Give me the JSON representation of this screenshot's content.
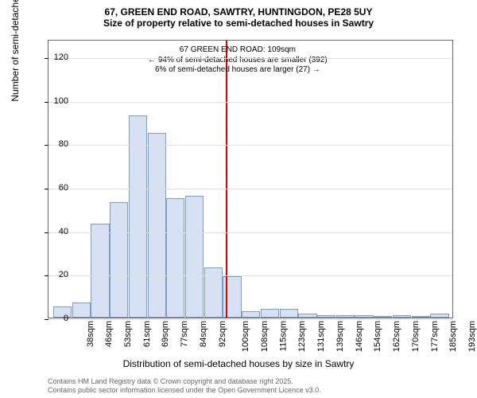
{
  "title": {
    "line1": "67, GREEN END ROAD, SAWTRY, HUNTINGDON, PE28 5UY",
    "line2": "Size of property relative to semi-detached houses in Sawtry"
  },
  "chart": {
    "type": "histogram",
    "bar_fill": "#d6e2f3",
    "bar_border": "#7a9cc6",
    "grid_color": "#e0e0e0",
    "background_color": "#ffffff",
    "ref_line_color": "#d40000",
    "ref_line_x_index": 9,
    "ylim": [
      0,
      128
    ],
    "yticks": [
      0,
      20,
      40,
      60,
      80,
      100,
      120
    ],
    "ylabel": "Number of semi-detached properties",
    "xlabel": "Distribution of semi-detached houses by size in Sawtry",
    "xticks": [
      "38sqm",
      "46sqm",
      "53sqm",
      "61sqm",
      "69sqm",
      "77sqm",
      "84sqm",
      "92sqm",
      "100sqm",
      "108sqm",
      "115sqm",
      "123sqm",
      "131sqm",
      "139sqm",
      "146sqm",
      "154sqm",
      "162sqm",
      "170sqm",
      "177sqm",
      "185sqm",
      "193sqm"
    ],
    "values": [
      5,
      7,
      43,
      53,
      93,
      85,
      55,
      56,
      23,
      19,
      3,
      4,
      4,
      2,
      1,
      1,
      1,
      0,
      1,
      0,
      2
    ],
    "title_fontsize": 12,
    "label_fontsize": 12,
    "tick_fontsize": 11,
    "annot_fontsize": 10
  },
  "annotation": {
    "line1": "67 GREEN END ROAD: 109sqm",
    "line2": "← 94% of semi-detached houses are smaller (392)",
    "line3": "6% of semi-detached houses are larger (27) →"
  },
  "footer": {
    "line1": "Contains HM Land Registry data © Crown copyright and database right 2025.",
    "line2": "Contains public sector information licensed under the Open Government Licence v3.0."
  }
}
